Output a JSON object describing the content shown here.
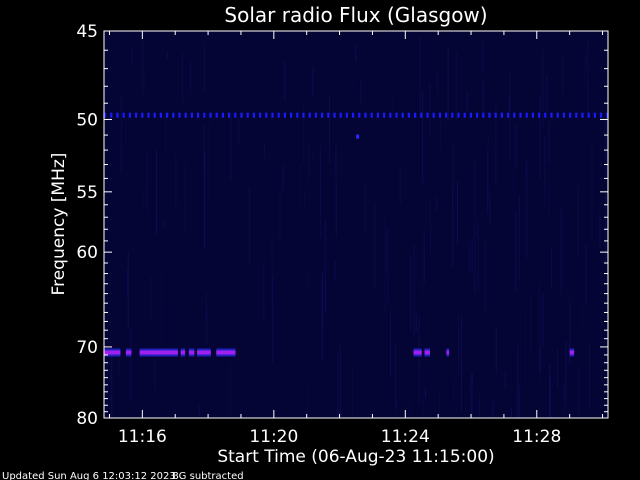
{
  "chart_data": {
    "type": "heatmap",
    "title": "Solar radio Flux (Glasgow)",
    "xlabel": "Start Time (06-Aug-23 11:15:00)",
    "ylabel": "Frequency [MHz]",
    "x_unit": "time (HH:MM)",
    "x_range": [
      "11:14:50",
      "11:30:10"
    ],
    "x_ticks": [
      "11:16",
      "11:20",
      "11:24",
      "11:28"
    ],
    "ylim": [
      45,
      80
    ],
    "y_ticks": [
      45,
      50,
      55,
      60,
      70,
      80
    ],
    "y_axis_direction": "inverted (45 at top, 80 at bottom)",
    "y_scale": "non-linear (compressed toward higher frequencies)",
    "background_level": "dark navy, near zero after background subtraction",
    "features": [
      {
        "type": "persistent narrowband emission (interference)",
        "frequency_mhz": 49.7,
        "time_start": "11:14:50",
        "time_end": "11:30:10",
        "color": "#1a1aff",
        "pattern": "intermittent short dashes"
      },
      {
        "type": "narrowband emission",
        "frequency_mhz": 70.7,
        "color": "#a020f0",
        "segments": [
          {
            "start": "11:14:50",
            "end": "11:15:20"
          },
          {
            "start": "11:15:30",
            "end": "11:15:40"
          },
          {
            "start": "11:15:55",
            "end": "11:17:05"
          },
          {
            "start": "11:17:10",
            "end": "11:17:18"
          },
          {
            "start": "11:17:25",
            "end": "11:17:35"
          },
          {
            "start": "11:17:40",
            "end": "11:18:05"
          },
          {
            "start": "11:18:15",
            "end": "11:18:50"
          },
          {
            "start": "11:24:15",
            "end": "11:24:30"
          },
          {
            "start": "11:24:35",
            "end": "11:24:45"
          },
          {
            "start": "11:25:15",
            "end": "11:25:20"
          },
          {
            "start": "11:29:00",
            "end": "11:29:08"
          }
        ]
      },
      {
        "type": "isolated spot",
        "frequency_mhz": 51.1,
        "time": "11:22:33",
        "color": "#2a2aff"
      }
    ]
  },
  "footer": {
    "updated": "Updated Sun Aug  6 12:03:12 2023",
    "note": "BG subtracted"
  },
  "colors": {
    "background": "#000000",
    "plot_background": "#050535",
    "axes": "#ffffff",
    "band_50": "#1a1aff",
    "band_70": "#a020f0"
  }
}
